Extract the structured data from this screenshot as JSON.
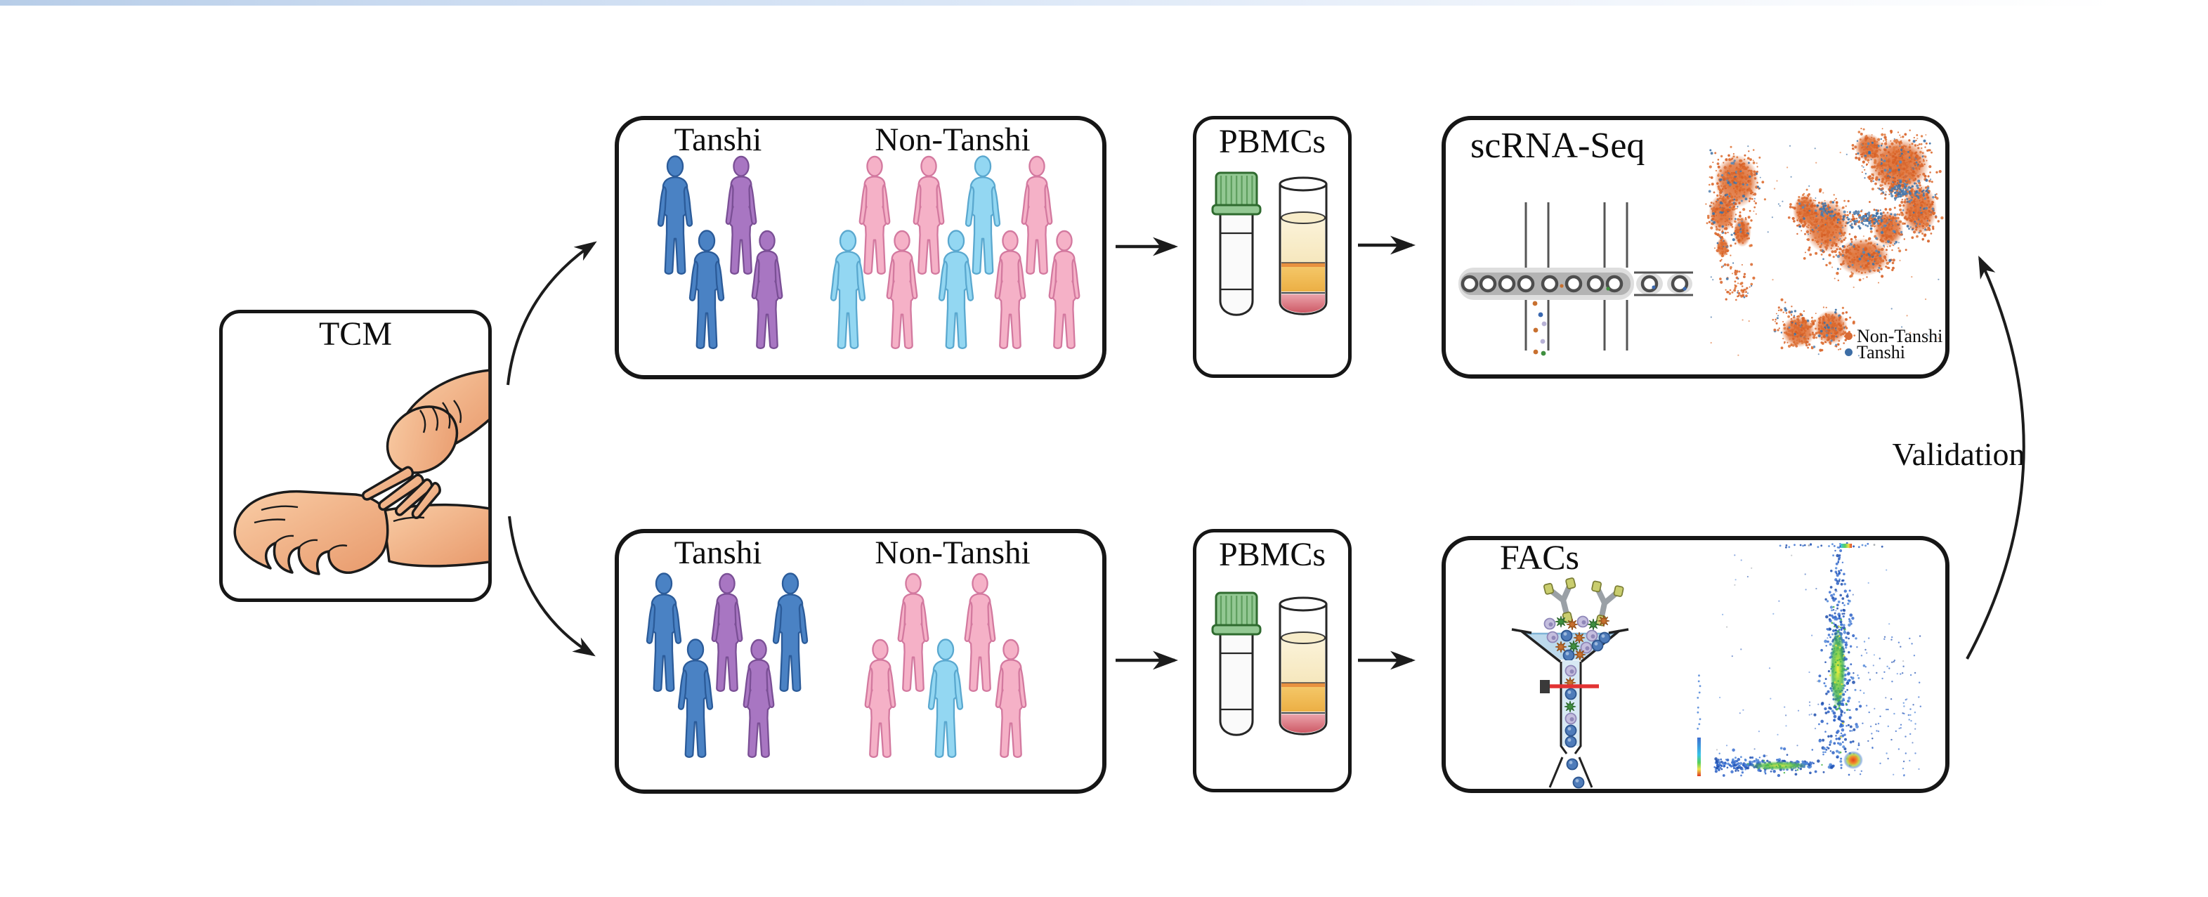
{
  "tcm": {
    "title": "TCM"
  },
  "cohort_top": {
    "tanshi_label": "Tanshi",
    "non_tanshi_label": "Non-Tanshi",
    "tanshi_figures": [
      [
        "male-blue",
        "female-purple"
      ],
      [
        "male-blue",
        "female-purple"
      ]
    ],
    "non_tanshi_figures": [
      [
        "female-pink",
        "female-pink",
        "male-lightblue",
        "female-pink"
      ],
      [
        "male-lightblue",
        "female-pink",
        "male-lightblue",
        "female-pink",
        "female-pink"
      ]
    ]
  },
  "pbmcs_top": {
    "title": "PBMCs"
  },
  "scrna": {
    "title": "scRNA-Seq",
    "legend": [
      {
        "label": "Non-Tanshi",
        "color": "#d96b35"
      },
      {
        "label": "Tanshi",
        "color": "#3d6ea6"
      }
    ]
  },
  "cohort_bottom": {
    "tanshi_label": "Tanshi",
    "non_tanshi_label": "Non-Tanshi",
    "tanshi_figures": [
      [
        "male-blue",
        "female-purple",
        "male-blue"
      ],
      [
        "male-blue",
        "female-purple"
      ]
    ],
    "non_tanshi_figures": [
      [
        "female-pink",
        "female-pink"
      ],
      [
        "female-pink",
        "male-lightblue",
        "female-pink"
      ]
    ]
  },
  "pbmcs_bottom": {
    "title": "PBMCs"
  },
  "facs": {
    "title": "FACs"
  },
  "validation": {
    "label": "Validation"
  },
  "palette": {
    "person_colors": {
      "male-blue": {
        "fill": "#4a82c4",
        "stroke": "#2b5b99"
      },
      "female-purple": {
        "fill": "#a876c2",
        "stroke": "#7a4f95"
      },
      "female-pink": {
        "fill": "#f5b1c7",
        "stroke": "#d3799f"
      },
      "male-lightblue": {
        "fill": "#93d7f2",
        "stroke": "#5aa8cf"
      }
    },
    "umap_orange": "#d96b35",
    "umap_blue": "#3d6ea6",
    "arrow_color": "#1c1c1c",
    "laser_red": "#e23333",
    "tube_cap_green": "#93c893",
    "topbar_blue": "#b7cde8"
  }
}
